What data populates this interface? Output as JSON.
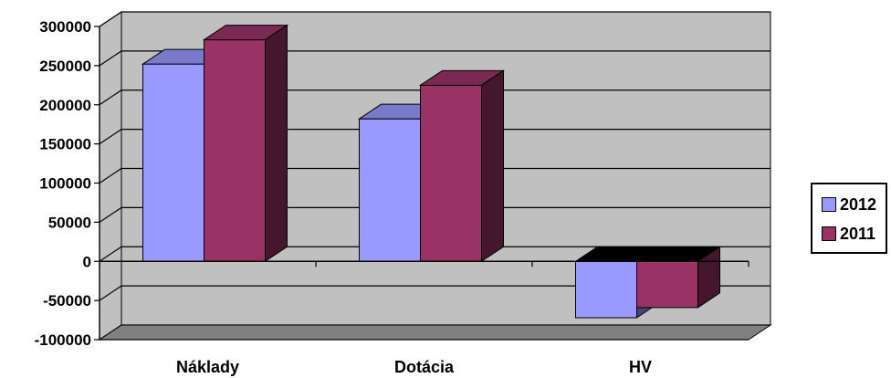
{
  "chart_data": {
    "type": "bar",
    "style": "3d-clustered-column",
    "categories": [
      "Náklady",
      "Dotácia",
      "HV"
    ],
    "series": [
      {
        "name": "2012",
        "values": [
          252000,
          182000,
          -72000
        ],
        "color": "#9999FF"
      },
      {
        "name": "2011",
        "values": [
          283000,
          225000,
          -59000
        ],
        "color": "#993366"
      }
    ],
    "y_ticks": [
      "300000",
      "250000",
      "200000",
      "150000",
      "100000",
      "50000",
      "0",
      "-50000",
      "-100000"
    ],
    "ylim": [
      -100000,
      300000
    ],
    "grid": true,
    "legend_position": "right",
    "wall_color": "#C0C0C0",
    "floor_color": "#808080",
    "title": "",
    "xlabel": "",
    "ylabel": ""
  }
}
